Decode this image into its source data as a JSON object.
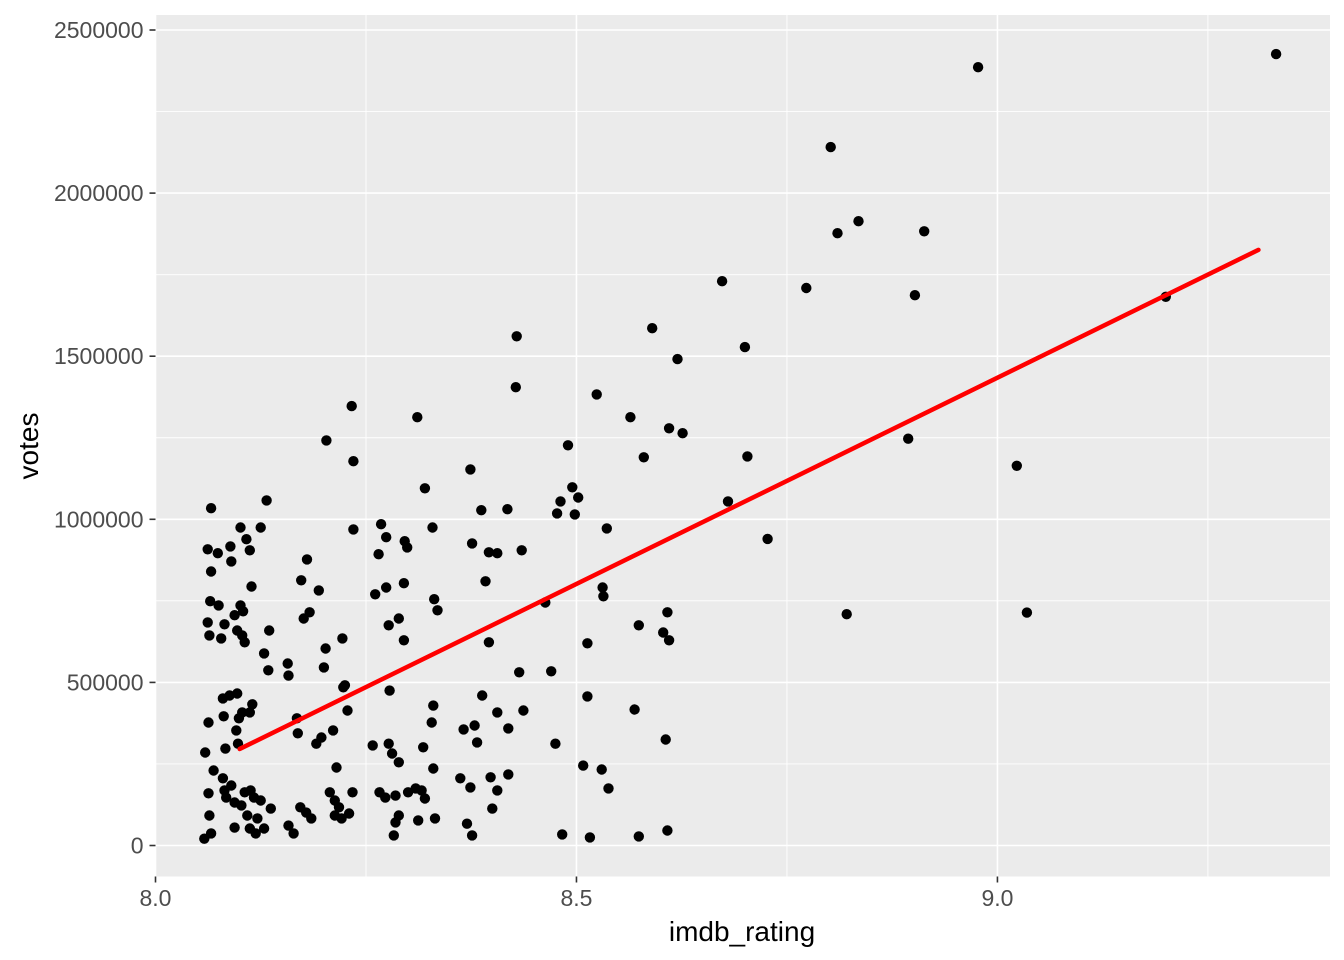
{
  "chart_data": {
    "type": "scatter",
    "title": "",
    "xlabel": "imdb_rating",
    "ylabel": "votes",
    "x_domain": [
      8.0,
      9.395
    ],
    "y_domain": [
      -95000,
      2546000
    ],
    "grid": true,
    "legend": "none",
    "x_ticks": {
      "values": [
        8.0,
        8.5,
        9.0
      ],
      "labels": [
        "8.0",
        "8.5",
        "9.0"
      ],
      "minor": [
        8.25,
        8.75,
        9.25
      ]
    },
    "y_ticks": {
      "values": [
        0,
        500000,
        1000000,
        1500000,
        2000000,
        2500000
      ],
      "labels": [
        "0",
        "500000",
        "1000000",
        "1500000",
        "2000000",
        "2500000"
      ],
      "minor": [
        250000,
        750000,
        1250000,
        1750000,
        2250000
      ]
    },
    "trend_line": {
      "model": "linear",
      "x": [
        8.1,
        9.31
      ],
      "y": [
        296000,
        1826000
      ]
    },
    "style": {
      "panel_bg": "#EBEBEB",
      "grid_color": "#FFFFFF",
      "point_color": "#000000",
      "trend_color": "#FF0000",
      "tick_text_color": "#4D4D4D",
      "axis_title_color": "#000000",
      "tick_mark_color": "#333333"
    },
    "points": [
      [
        8.233,
        1347000
      ],
      [
        8.311,
        1313000
      ],
      [
        8.203,
        1242000
      ],
      [
        8.235,
        1178000
      ],
      [
        8.32,
        1095000
      ],
      [
        8.132,
        1058000
      ],
      [
        8.066,
        1034000
      ],
      [
        8.101,
        975000
      ],
      [
        8.125,
        975000
      ],
      [
        8.235,
        969000
      ],
      [
        8.268,
        985000
      ],
      [
        8.274,
        945000
      ],
      [
        8.108,
        939000
      ],
      [
        8.296,
        933000
      ],
      [
        8.299,
        914000
      ],
      [
        8.062,
        908000
      ],
      [
        8.074,
        896000
      ],
      [
        8.089,
        917000
      ],
      [
        8.112,
        905000
      ],
      [
        8.265,
        893000
      ],
      [
        8.09,
        871000
      ],
      [
        8.18,
        877000
      ],
      [
        8.066,
        840000
      ],
      [
        8.173,
        813000
      ],
      [
        8.114,
        794000
      ],
      [
        8.295,
        804000
      ],
      [
        8.274,
        791000
      ],
      [
        8.194,
        782000
      ],
      [
        8.261,
        770000
      ],
      [
        8.329,
        975000
      ],
      [
        8.331,
        755000
      ],
      [
        8.335,
        721000
      ],
      [
        8.065,
        749000
      ],
      [
        8.075,
        736000
      ],
      [
        8.101,
        736000
      ],
      [
        8.104,
        718000
      ],
      [
        8.094,
        706000
      ],
      [
        8.183,
        715000
      ],
      [
        8.062,
        684000
      ],
      [
        8.082,
        678000
      ],
      [
        8.064,
        644000
      ],
      [
        8.078,
        635000
      ],
      [
        8.097,
        659000
      ],
      [
        8.103,
        644000
      ],
      [
        8.106,
        623000
      ],
      [
        8.135,
        659000
      ],
      [
        8.129,
        589000
      ],
      [
        8.176,
        696000
      ],
      [
        8.134,
        537000
      ],
      [
        8.157,
        558000
      ],
      [
        8.158,
        521000
      ],
      [
        8.202,
        604000
      ],
      [
        8.222,
        635000
      ],
      [
        8.2,
        546000
      ],
      [
        8.223,
        485000
      ],
      [
        8.228,
        414000
      ],
      [
        8.277,
        675000
      ],
      [
        8.289,
        696000
      ],
      [
        8.295,
        629000
      ],
      [
        8.278,
        475000
      ],
      [
        8.33,
        429000
      ],
      [
        8.328,
        377000
      ],
      [
        8.08,
        451000
      ],
      [
        8.088,
        460000
      ],
      [
        8.097,
        466000
      ],
      [
        8.115,
        433000
      ],
      [
        8.112,
        408000
      ],
      [
        8.063,
        377000
      ],
      [
        8.081,
        396000
      ],
      [
        8.096,
        353000
      ],
      [
        8.099,
        390000
      ],
      [
        8.103,
        408000
      ],
      [
        8.059,
        285000
      ],
      [
        8.083,
        297000
      ],
      [
        8.098,
        312000
      ],
      [
        8.168,
        390000
      ],
      [
        8.169,
        344000
      ],
      [
        8.191,
        312000
      ],
      [
        8.197,
        331000
      ],
      [
        8.211,
        353000
      ],
      [
        8.215,
        239000
      ],
      [
        8.225,
        491000
      ],
      [
        8.258,
        307000
      ],
      [
        8.277,
        312000
      ],
      [
        8.281,
        282000
      ],
      [
        8.289,
        255000
      ],
      [
        8.318,
        301000
      ],
      [
        8.33,
        236000
      ],
      [
        8.069,
        230000
      ],
      [
        8.08,
        206000
      ],
      [
        8.063,
        160000
      ],
      [
        8.082,
        169000
      ],
      [
        8.084,
        147000
      ],
      [
        8.09,
        184000
      ],
      [
        8.094,
        132000
      ],
      [
        8.102,
        123000
      ],
      [
        8.106,
        163000
      ],
      [
        8.113,
        169000
      ],
      [
        8.117,
        147000
      ],
      [
        8.125,
        138000
      ],
      [
        8.064,
        92000
      ],
      [
        8.094,
        55000
      ],
      [
        8.066,
        37000
      ],
      [
        8.058,
        21000
      ],
      [
        8.109,
        92000
      ],
      [
        8.112,
        52000
      ],
      [
        8.119,
        37000
      ],
      [
        8.129,
        52000
      ],
      [
        8.137,
        113000
      ],
      [
        8.121,
        83000
      ],
      [
        8.158,
        61000
      ],
      [
        8.164,
        37000
      ],
      [
        8.172,
        117000
      ],
      [
        8.179,
        101000
      ],
      [
        8.185,
        83000
      ],
      [
        8.207,
        163000
      ],
      [
        8.213,
        138000
      ],
      [
        8.218,
        117000
      ],
      [
        8.213,
        92000
      ],
      [
        8.221,
        83000
      ],
      [
        8.234,
        163000
      ],
      [
        8.23,
        98000
      ],
      [
        8.266,
        163000
      ],
      [
        8.273,
        147000
      ],
      [
        8.285,
        153000
      ],
      [
        8.3,
        163000
      ],
      [
        8.309,
        175000
      ],
      [
        8.316,
        169000
      ],
      [
        8.32,
        144000
      ],
      [
        8.332,
        83000
      ],
      [
        8.312,
        77000
      ],
      [
        8.285,
        71000
      ],
      [
        8.289,
        92000
      ],
      [
        8.283,
        31000
      ],
      [
        8.428,
        1405000
      ],
      [
        8.524,
        1383000
      ],
      [
        8.564,
        1313000
      ],
      [
        8.61,
        1279000
      ],
      [
        8.626,
        1264000
      ],
      [
        8.58,
        1190000
      ],
      [
        8.703,
        1193000
      ],
      [
        8.49,
        1227000
      ],
      [
        8.374,
        1153000
      ],
      [
        8.495,
        1098000
      ],
      [
        8.502,
        1067000
      ],
      [
        8.481,
        1055000
      ],
      [
        8.477,
        1018000
      ],
      [
        8.498,
        1015000
      ],
      [
        8.387,
        1028000
      ],
      [
        8.418,
        1031000
      ],
      [
        8.68,
        1055000
      ],
      [
        8.536,
        972000
      ],
      [
        8.376,
        926000
      ],
      [
        8.396,
        899000
      ],
      [
        8.406,
        896000
      ],
      [
        8.435,
        905000
      ],
      [
        8.392,
        810000
      ],
      [
        8.463,
        745000
      ],
      [
        8.531,
        791000
      ],
      [
        8.532,
        764000
      ],
      [
        8.608,
        715000
      ],
      [
        8.396,
        623000
      ],
      [
        8.574,
        675000
      ],
      [
        8.61,
        629000
      ],
      [
        8.603,
        653000
      ],
      [
        8.513,
        620000
      ],
      [
        8.432,
        531000
      ],
      [
        8.47,
        534000
      ],
      [
        8.388,
        460000
      ],
      [
        8.513,
        457000
      ],
      [
        8.406,
        408000
      ],
      [
        8.437,
        414000
      ],
      [
        8.569,
        417000
      ],
      [
        8.366,
        356000
      ],
      [
        8.379,
        368000
      ],
      [
        8.382,
        316000
      ],
      [
        8.419,
        359000
      ],
      [
        8.606,
        325000
      ],
      [
        8.475,
        312000
      ],
      [
        8.508,
        245000
      ],
      [
        8.53,
        233000
      ],
      [
        8.362,
        206000
      ],
      [
        8.374,
        178000
      ],
      [
        8.398,
        209000
      ],
      [
        8.419,
        218000
      ],
      [
        8.406,
        169000
      ],
      [
        8.538,
        175000
      ],
      [
        8.4,
        113000
      ],
      [
        8.37,
        67000
      ],
      [
        8.376,
        31000
      ],
      [
        8.483,
        34000
      ],
      [
        8.516,
        25000
      ],
      [
        8.574,
        28000
      ],
      [
        8.608,
        46000
      ],
      [
        8.429,
        1561000
      ],
      [
        8.59,
        1586000
      ],
      [
        8.673,
        1730000
      ],
      [
        8.62,
        1491000
      ],
      [
        8.7,
        1528000
      ],
      [
        8.977,
        2386000
      ],
      [
        9.331,
        2426000
      ],
      [
        8.802,
        2141000
      ],
      [
        8.835,
        1914000
      ],
      [
        8.81,
        1877000
      ],
      [
        8.913,
        1883000
      ],
      [
        8.773,
        1709000
      ],
      [
        8.902,
        1687000
      ],
      [
        9.2,
        1682000
      ],
      [
        8.894,
        1247000
      ],
      [
        9.023,
        1164000
      ],
      [
        8.727,
        940000
      ],
      [
        8.821,
        709000
      ],
      [
        9.035,
        714000
      ]
    ]
  }
}
